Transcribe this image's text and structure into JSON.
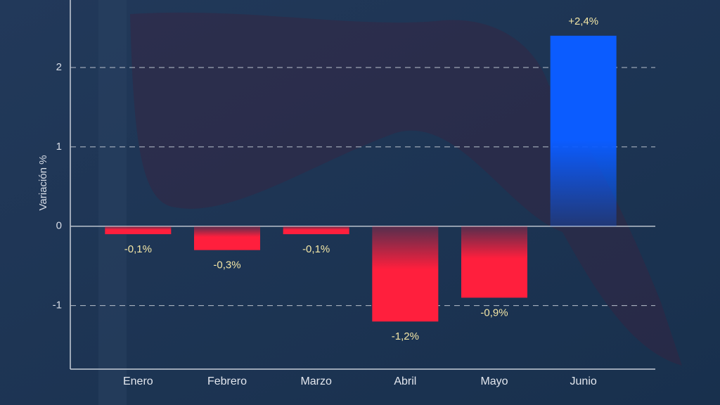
{
  "chart_data": {
    "type": "bar",
    "y_label": "Variación %",
    "categories": [
      "Enero",
      "Febrero",
      "Marzo",
      "Abril",
      "Mayo",
      "Junio"
    ],
    "values": [
      -0.1,
      -0.3,
      -0.1,
      -1.2,
      -0.9,
      2.4
    ],
    "value_labels": [
      "-0,1%",
      "-0,3%",
      "-0,1%",
      "-1,2%",
      "-0,9%",
      "+2,4%"
    ],
    "colors": [
      "#ff1f3d",
      "#ff1f3d",
      "#ff1f3d",
      "#ff1f3d",
      "#ff1f3d",
      "#0b5cff"
    ],
    "ylim": [
      -1.8,
      2.85
    ],
    "yticks": [
      -1,
      0,
      1,
      2
    ],
    "grid": true
  }
}
